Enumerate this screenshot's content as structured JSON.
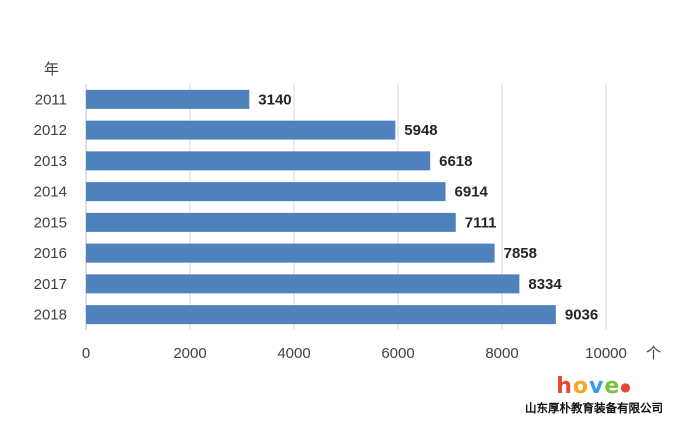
{
  "chart_data": {
    "type": "bar",
    "orientation": "horizontal",
    "categories": [
      "2011",
      "2012",
      "2013",
      "2014",
      "2015",
      "2016",
      "2017",
      "2018"
    ],
    "values": [
      3140,
      5948,
      6618,
      6914,
      7111,
      7858,
      8334,
      9036
    ],
    "ylabel": "年",
    "xlabel": "个",
    "xlim": [
      0,
      10000
    ],
    "xticks": [
      0,
      2000,
      4000,
      6000,
      8000,
      10000
    ],
    "grid": true,
    "bar_color": "#4f81bd"
  },
  "watermark": {
    "logo_text": "hove",
    "logo_colors": [
      "#e8452c",
      "#f5a623",
      "#3d9be9",
      "#7ac143"
    ],
    "company": "山东厚朴教育装备有限公司"
  }
}
